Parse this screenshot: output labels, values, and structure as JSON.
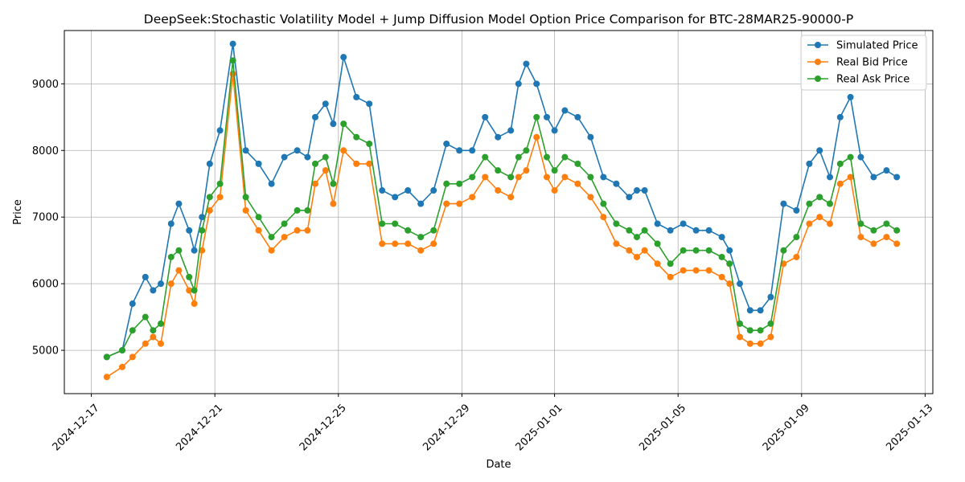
{
  "chart_data": {
    "type": "line",
    "title": "DeepSeek:Stochastic Volatility Model + Jump Diffusion Model Option Price Comparison for BTC-28MAR25-90000-P",
    "xlabel": "Date",
    "ylabel": "Price",
    "xlim": [
      "2024-12-16T03:00",
      "2025-01-13T06:00"
    ],
    "ylim": [
      4350,
      9800
    ],
    "x_ticks": [
      "2024-12-17",
      "2024-12-21",
      "2024-12-25",
      "2024-12-29",
      "2025-01-01",
      "2025-01-05",
      "2025-01-09",
      "2025-01-13"
    ],
    "y_ticks": [
      5000,
      6000,
      7000,
      8000,
      9000
    ],
    "grid": true,
    "legend_position": "top-right",
    "marker": "circle",
    "series_colors": [
      "#1f77b4",
      "#ff7f0e",
      "#2ca02c"
    ],
    "series_names": [
      "Simulated Price",
      "Real Bid Price",
      "Real Ask Price"
    ],
    "x": [
      "2024-12-17T12:00",
      "2024-12-18T00:00",
      "2024-12-18T08:00",
      "2024-12-18T18:00",
      "2024-12-19T00:00",
      "2024-12-19T06:00",
      "2024-12-19T14:00",
      "2024-12-19T20:00",
      "2024-12-20T04:00",
      "2024-12-20T08:00",
      "2024-12-20T14:00",
      "2024-12-20T20:00",
      "2024-12-21T04:00",
      "2024-12-21T14:00",
      "2024-12-22T00:00",
      "2024-12-22T10:00",
      "2024-12-22T20:00",
      "2024-12-23T06:00",
      "2024-12-23T16:00",
      "2024-12-24T00:00",
      "2024-12-24T06:00",
      "2024-12-24T14:00",
      "2024-12-24T20:00",
      "2024-12-25T04:00",
      "2024-12-25T14:00",
      "2024-12-26T00:00",
      "2024-12-26T10:00",
      "2024-12-26T20:00",
      "2024-12-27T06:00",
      "2024-12-27T16:00",
      "2024-12-28T02:00",
      "2024-12-28T12:00",
      "2024-12-28T22:00",
      "2024-12-29T08:00",
      "2024-12-29T18:00",
      "2024-12-30T04:00",
      "2024-12-30T14:00",
      "2024-12-30T20:00",
      "2024-12-31T02:00",
      "2024-12-31T10:00",
      "2024-12-31T18:00",
      "2025-01-01T00:00",
      "2025-01-01T08:00",
      "2025-01-01T18:00",
      "2025-01-02T04:00",
      "2025-01-02T14:00",
      "2025-01-03T00:00",
      "2025-01-03T10:00",
      "2025-01-03T16:00",
      "2025-01-03T22:00",
      "2025-01-04T08:00",
      "2025-01-04T18:00",
      "2025-01-05T04:00",
      "2025-01-05T14:00",
      "2025-01-06T00:00",
      "2025-01-06T10:00",
      "2025-01-06T16:00",
      "2025-01-07T00:00",
      "2025-01-07T08:00",
      "2025-01-07T16:00",
      "2025-01-08T00:00",
      "2025-01-08T10:00",
      "2025-01-08T20:00",
      "2025-01-09T06:00",
      "2025-01-09T14:00",
      "2025-01-09T22:00",
      "2025-01-10T06:00",
      "2025-01-10T14:00",
      "2025-01-10T22:00",
      "2025-01-11T08:00",
      "2025-01-11T18:00",
      "2025-01-12T02:00"
    ],
    "series": [
      {
        "name": "Simulated Price",
        "values": [
          4900,
          5000,
          5700,
          6100,
          5900,
          6000,
          6900,
          7200,
          6800,
          6500,
          7000,
          7800,
          8300,
          9600,
          8000,
          7800,
          7500,
          7900,
          8000,
          7900,
          8500,
          8700,
          8400,
          9400,
          8800,
          8700,
          7400,
          7300,
          7400,
          7200,
          7400,
          8100,
          8000,
          8000,
          8500,
          8200,
          8300,
          9000,
          9300,
          9000,
          8500,
          8300,
          8600,
          8500,
          8200,
          7600,
          7500,
          7300,
          7400,
          7400,
          6900,
          6800,
          6900,
          6800,
          6800,
          6700,
          6500,
          6000,
          5600,
          5600,
          5800,
          7200,
          7100,
          7800,
          8000,
          7600,
          8500,
          8800,
          7900,
          7600,
          7700,
          7600
        ]
      },
      {
        "name": "Real Bid Price",
        "values": [
          4600,
          4750,
          4900,
          5100,
          5200,
          5100,
          6000,
          6200,
          5900,
          5700,
          6500,
          7100,
          7300,
          9150,
          7100,
          6800,
          6500,
          6700,
          6800,
          6800,
          7500,
          7700,
          7200,
          8000,
          7800,
          7800,
          6600,
          6600,
          6600,
          6500,
          6600,
          7200,
          7200,
          7300,
          7600,
          7400,
          7300,
          7600,
          7700,
          8200,
          7600,
          7400,
          7600,
          7500,
          7300,
          7000,
          6600,
          6500,
          6400,
          6500,
          6300,
          6100,
          6200,
          6200,
          6200,
          6100,
          6000,
          5200,
          5100,
          5100,
          5200,
          6300,
          6400,
          6900,
          7000,
          6900,
          7500,
          7600,
          6700,
          6600,
          6700,
          6600
        ]
      },
      {
        "name": "Real Ask Price",
        "values": [
          4900,
          5000,
          5300,
          5500,
          5300,
          5400,
          6400,
          6500,
          6100,
          5900,
          6800,
          7300,
          7500,
          9350,
          7300,
          7000,
          6700,
          6900,
          7100,
          7100,
          7800,
          7900,
          7500,
          8400,
          8200,
          8100,
          6900,
          6900,
          6800,
          6700,
          6800,
          7500,
          7500,
          7600,
          7900,
          7700,
          7600,
          7900,
          8000,
          8500,
          7900,
          7700,
          7900,
          7800,
          7600,
          7200,
          6900,
          6800,
          6700,
          6800,
          6600,
          6300,
          6500,
          6500,
          6500,
          6400,
          6300,
          5400,
          5300,
          5300,
          5400,
          6500,
          6700,
          7200,
          7300,
          7200,
          7800,
          7900,
          6900,
          6800,
          6900,
          6800
        ]
      }
    ]
  }
}
